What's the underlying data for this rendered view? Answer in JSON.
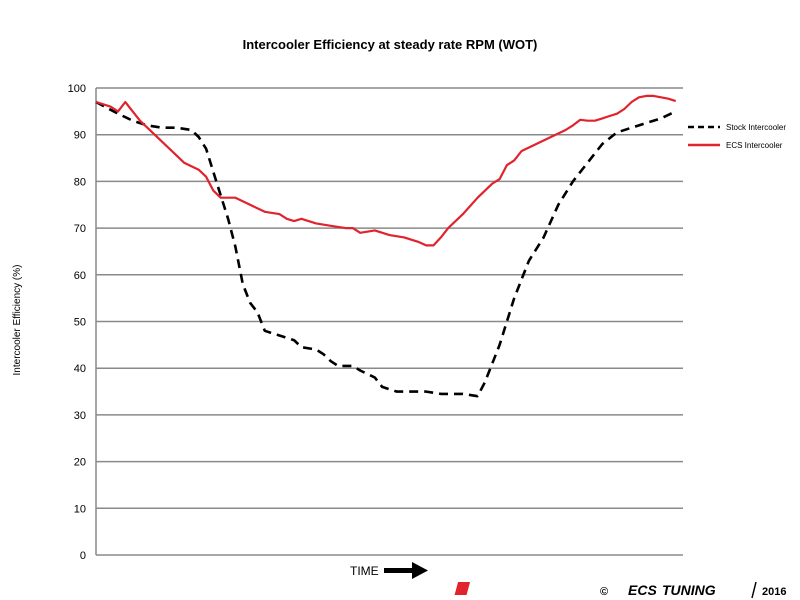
{
  "chart_data": {
    "type": "line",
    "title": "Intercooler Efficiency at steady rate RPM (WOT)",
    "xlabel": "TIME",
    "ylabel": "Intercooler Efficiency (%)",
    "ylim": [
      0,
      100
    ],
    "yticks": [
      0,
      10,
      20,
      30,
      40,
      50,
      60,
      70,
      80,
      90,
      100
    ],
    "grid": true,
    "legend_position": "right",
    "series": [
      {
        "name": "Stock Intercooler",
        "color": "#000000",
        "style": "dashed",
        "points": [
          [
            0,
            97
          ],
          [
            3,
            94.5
          ],
          [
            5,
            93
          ],
          [
            7,
            92
          ],
          [
            9,
            91.5
          ],
          [
            11,
            91.5
          ],
          [
            13,
            91
          ],
          [
            14,
            89.5
          ],
          [
            15,
            87
          ],
          [
            16,
            82
          ],
          [
            17,
            77
          ],
          [
            18,
            72
          ],
          [
            19,
            66
          ],
          [
            20,
            58
          ],
          [
            21,
            54
          ],
          [
            22,
            52
          ],
          [
            23,
            48
          ],
          [
            25,
            47
          ],
          [
            27,
            46
          ],
          [
            28,
            44.5
          ],
          [
            30,
            44
          ],
          [
            31,
            43
          ],
          [
            32,
            41.5
          ],
          [
            33,
            40.5
          ],
          [
            35,
            40.5
          ],
          [
            36,
            39.5
          ],
          [
            38,
            38
          ],
          [
            39,
            36
          ],
          [
            41,
            35
          ],
          [
            43,
            35
          ],
          [
            45,
            35
          ],
          [
            47,
            34.5
          ],
          [
            49,
            34.5
          ],
          [
            50,
            34.5
          ],
          [
            52,
            34
          ],
          [
            53,
            37
          ],
          [
            55,
            45
          ],
          [
            57,
            55
          ],
          [
            59,
            63
          ],
          [
            61,
            68
          ],
          [
            63,
            75
          ],
          [
            65,
            80
          ],
          [
            67,
            84
          ],
          [
            69,
            88
          ],
          [
            71,
            90.5
          ],
          [
            73,
            91.5
          ],
          [
            75,
            92.5
          ],
          [
            77,
            93.5
          ],
          [
            79,
            95
          ]
        ]
      },
      {
        "name": "ECS Intercooler",
        "color": "#e0232c",
        "style": "solid",
        "points": [
          [
            0,
            97
          ],
          [
            1,
            96.5
          ],
          [
            2,
            96
          ],
          [
            3,
            95
          ],
          [
            4,
            97
          ],
          [
            5,
            95
          ],
          [
            6,
            93
          ],
          [
            8,
            90
          ],
          [
            10,
            87
          ],
          [
            12,
            84
          ],
          [
            14,
            82.5
          ],
          [
            15,
            81
          ],
          [
            16,
            78
          ],
          [
            17,
            76.5
          ],
          [
            19,
            76.5
          ],
          [
            21,
            75
          ],
          [
            23,
            73.5
          ],
          [
            25,
            73
          ],
          [
            26,
            72
          ],
          [
            27,
            71.5
          ],
          [
            28,
            72
          ],
          [
            30,
            71
          ],
          [
            32,
            70.5
          ],
          [
            34,
            70
          ],
          [
            35,
            70
          ],
          [
            36,
            69
          ],
          [
            38,
            69.5
          ],
          [
            40,
            68.5
          ],
          [
            42,
            68
          ],
          [
            44,
            67
          ],
          [
            45,
            66.3
          ],
          [
            46,
            66.3
          ],
          [
            47,
            68
          ],
          [
            48,
            70
          ],
          [
            50,
            73
          ],
          [
            52,
            76.5
          ],
          [
            54,
            79.5
          ],
          [
            55,
            80.5
          ],
          [
            56,
            83.5
          ],
          [
            57,
            84.5
          ],
          [
            58,
            86.5
          ],
          [
            60,
            88
          ],
          [
            62,
            89.5
          ],
          [
            64,
            91
          ],
          [
            65,
            92
          ],
          [
            66,
            93.2
          ],
          [
            67,
            93
          ],
          [
            68,
            93
          ],
          [
            69,
            93.5
          ],
          [
            70,
            94
          ],
          [
            71,
            94.5
          ],
          [
            72,
            95.5
          ],
          [
            73,
            97
          ],
          [
            74,
            98
          ],
          [
            75,
            98.3
          ],
          [
            76,
            98.3
          ],
          [
            77,
            98
          ],
          [
            78,
            97.7
          ],
          [
            79,
            97.2
          ]
        ]
      }
    ],
    "xrange": [
      0,
      80
    ]
  },
  "branding": {
    "copyright_symbol": "©",
    "brand_name": "ECS",
    "brand_suffix": "TUNING",
    "year": "2016",
    "logo_color": "#e0232c"
  }
}
